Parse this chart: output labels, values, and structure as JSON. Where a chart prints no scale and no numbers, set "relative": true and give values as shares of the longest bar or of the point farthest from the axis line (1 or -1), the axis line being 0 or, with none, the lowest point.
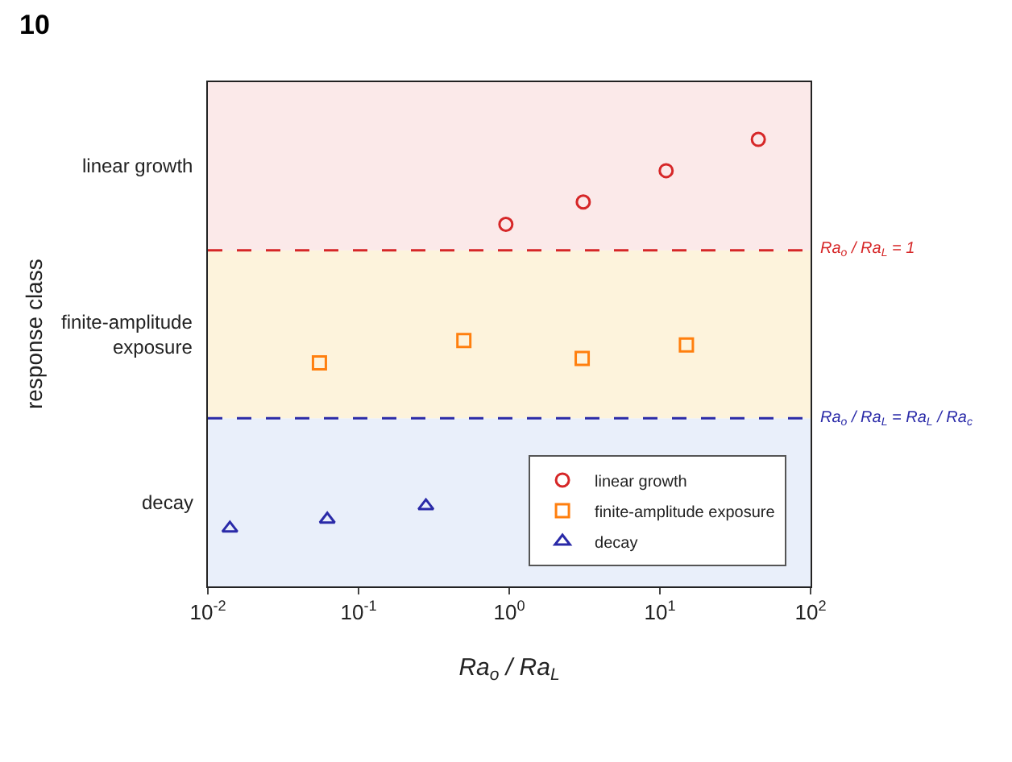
{
  "chart_data": {
    "type": "scatter",
    "relative": true,
    "xlabel": "Ra$_{o}$ / Ra$_{L}$",
    "annotations": [
      "10",
      "response class"
    ],
    "log": "x",
    "xlim": [
      0.01,
      100
    ],
    "xticks": [
      {
        "value": 0.01,
        "label": "10$^{-2}$"
      },
      {
        "value": 0.1,
        "label": "10$^{-1}$"
      },
      {
        "value": 1,
        "label": "10$^{0}$"
      },
      {
        "value": 10,
        "label": "10$^{1}$"
      },
      {
        "value": 100,
        "label": "10$^{2}$"
      }
    ],
    "grid": false,
    "legend": "bottom right",
    "bands": [
      {
        "axis": "y",
        "from": 0,
        "to": 0.376,
        "label": "decay",
        "color": "#e9effa"
      },
      {
        "axis": "y",
        "from": 0.376,
        "to": 0.752,
        "label": "finite-amplitude exposure",
        "color": "#fdf3dc"
      },
      {
        "axis": "y",
        "from": 0.752,
        "to": 1.128,
        "label": "linear growth",
        "color": "#fbe9e9"
      }
    ],
    "ref_lines": [
      {
        "axis": "y",
        "value": 0.752,
        "label": "Ra$_{o}$ / Ra$_{L}$ = 1",
        "color": "#d62728",
        "line_style": "dashed"
      },
      {
        "axis": "y",
        "value": 0.376,
        "label": "Ra$_{o}$ / Ra$_{L}$ = Ra$_{L}$ / Ra$_{c}$",
        "color": "#2a2aa8",
        "line_style": "dashed"
      }
    ],
    "series": [
      {
        "name": "linear growth",
        "color": "#d62728",
        "marker": "circle",
        "x": [
          0.95,
          3.1,
          11,
          45
        ],
        "values": [
          0.81,
          0.86,
          0.93,
          1
        ]
      },
      {
        "name": "finite-amplitude exposure",
        "color": "#ff7f0e",
        "marker": "square",
        "x": [
          0.055,
          0.5,
          3.05,
          15
        ],
        "values": [
          0.5,
          0.55,
          0.51,
          0.54
        ]
      },
      {
        "name": "decay",
        "color": "#2a2aa8",
        "marker": "triangle",
        "x": [
          0.014,
          0.062,
          0.28
        ],
        "values": [
          0.13,
          0.15,
          0.18
        ]
      }
    ]
  }
}
